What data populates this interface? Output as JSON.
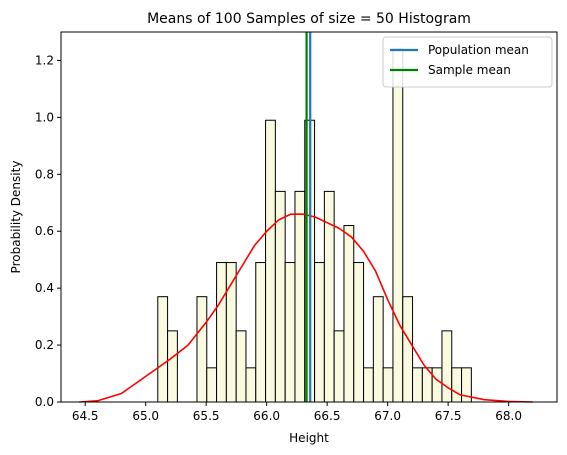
{
  "chart_data": {
    "type": "bar",
    "title": "Means of 100 Samples of size = 50 Histogram",
    "xlabel": "Height",
    "ylabel": "Probability Density",
    "xlim": [
      64.3,
      68.4
    ],
    "ylim": [
      0.0,
      1.3
    ],
    "xticks": [
      64.5,
      65.0,
      65.5,
      66.0,
      66.5,
      67.0,
      67.5,
      68.0
    ],
    "xtick_labels": [
      "64.5",
      "65.0",
      "65.5",
      "66.0",
      "66.5",
      "67.0",
      "67.5",
      "68.0"
    ],
    "yticks": [
      0.0,
      0.2,
      0.4,
      0.6,
      0.8,
      1.0,
      1.2
    ],
    "ytick_labels": [
      "0.0",
      "0.2",
      "0.4",
      "0.6",
      "0.8",
      "1.0",
      "1.2"
    ],
    "grid": false,
    "legend": "top-right",
    "histogram": {
      "bin_start": 65.1,
      "bin_width": 0.081,
      "densities": [
        0.37,
        0.25,
        0,
        0,
        0.37,
        0.12,
        0.49,
        0.49,
        0.25,
        0.12,
        0.49,
        0.99,
        0.74,
        0.49,
        0.74,
        0.99,
        0.49,
        0.74,
        0.25,
        0.62,
        0.49,
        0.12,
        0.37,
        0.12,
        1.24,
        0.37,
        0.12,
        0.12,
        0.12,
        0.25,
        0.12,
        0.12
      ],
      "fill_color": "#fafae0",
      "edge_color": "#000000"
    },
    "kde": {
      "color": "#ff0000",
      "x": [
        64.45,
        64.6,
        64.8,
        65.0,
        65.1,
        65.2,
        65.35,
        65.5,
        65.6,
        65.7,
        65.8,
        65.9,
        66.0,
        66.1,
        66.2,
        66.3,
        66.4,
        66.5,
        66.6,
        66.7,
        66.8,
        66.9,
        67.0,
        67.1,
        67.2,
        67.3,
        67.4,
        67.5,
        67.6,
        67.8,
        68.0,
        68.2
      ],
      "y": [
        0.0,
        0.004,
        0.03,
        0.09,
        0.12,
        0.15,
        0.2,
        0.28,
        0.34,
        0.41,
        0.48,
        0.55,
        0.6,
        0.64,
        0.66,
        0.66,
        0.65,
        0.63,
        0.61,
        0.58,
        0.53,
        0.46,
        0.36,
        0.27,
        0.2,
        0.13,
        0.08,
        0.05,
        0.025,
        0.008,
        0.002,
        0.0
      ]
    },
    "series": [
      {
        "name": "Population mean",
        "type": "vline",
        "x": 66.36,
        "color": "#1f77b4"
      },
      {
        "name": "Sample mean",
        "type": "vline",
        "x": 66.33,
        "color": "#008000"
      }
    ]
  }
}
